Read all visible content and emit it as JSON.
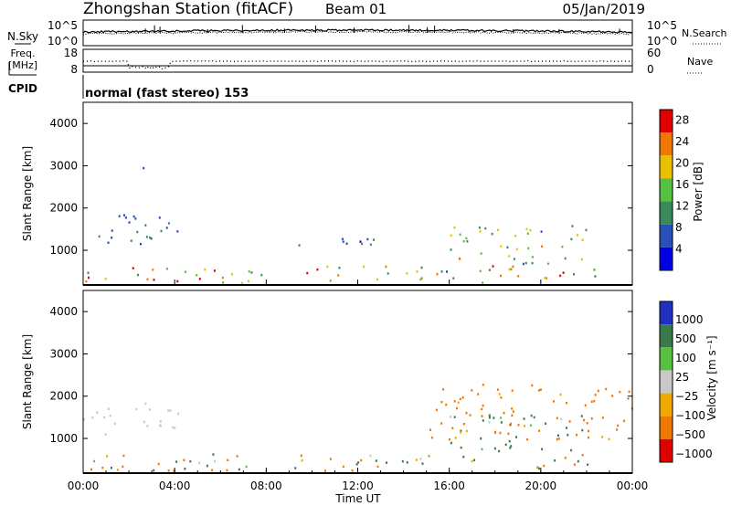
{
  "header": {
    "station": "Zhongshan Station (fitACF)",
    "beam": "Beam 01",
    "date": "05/Jan/2019"
  },
  "top_panels": {
    "noise": {
      "left_label": "N.Sky",
      "right_label": "N.Search",
      "ticks_left": [
        "10^5",
        "10^0"
      ],
      "ticks_right": [
        "10^5",
        "10^0"
      ]
    },
    "freq": {
      "left_label_1": "Freq.",
      "left_label_2": "[MHz]",
      "right_label": "Nave",
      "ticks_left": [
        "18",
        "8"
      ],
      "ticks_right": [
        "60",
        "0"
      ]
    },
    "cpid": {
      "label": "CPID",
      "text": "normal (fast stereo) 153"
    }
  },
  "chart_data": [
    {
      "type": "heatmap",
      "quantity": "Power",
      "ylabel": "Slant Range [km]",
      "xlabel": "",
      "x_range": [
        "00:00",
        "00:00 (+24h)"
      ],
      "ylim": [
        180,
        4500
      ],
      "y_ticks": [
        1000,
        2000,
        3000,
        4000
      ],
      "colorbar": {
        "label": "Power [dB]",
        "ticks": [
          "4",
          "8",
          "12",
          "16",
          "20",
          "24",
          "28"
        ],
        "range": [
          0,
          30
        ]
      },
      "colors": [
        "#0000e0",
        "#2850b8",
        "#3a8a5a",
        "#58c040",
        "#e8c000",
        "#f07800",
        "#e00000"
      ],
      "features": [
        {
          "range_km": [
            1100,
            1900
          ],
          "hours": [
            0,
            4.2
          ],
          "power_db": [
            6,
            12
          ]
        },
        {
          "range_km": [
            250,
            650
          ],
          "hours": [
            0,
            22.5
          ],
          "power_db": [
            8,
            30
          ]
        },
        {
          "range_km": [
            1100,
            1300
          ],
          "hours": [
            9,
            15.5
          ],
          "power_db": [
            4,
            10
          ]
        },
        {
          "range_km": [
            700,
            1600
          ],
          "hours": [
            16,
            22
          ],
          "power_db": [
            8,
            22
          ]
        },
        {
          "range_km": [
            2900,
            3100
          ],
          "hours": [
            2.5,
            3
          ],
          "power_db": [
            4,
            8
          ]
        }
      ]
    },
    {
      "type": "heatmap",
      "quantity": "Velocity",
      "ylabel": "Slant Range [km]",
      "xlabel": "Time UT",
      "x_ticks": [
        "00:00",
        "04:00",
        "08:00",
        "12:00",
        "16:00",
        "20:00",
        "00:00"
      ],
      "ylim": [
        180,
        4500
      ],
      "y_ticks": [
        1000,
        2000,
        3000,
        4000
      ],
      "colorbar": {
        "label": "Velocity [m s⁻¹]",
        "ticks": [
          "1000",
          "500",
          "100",
          "25",
          "−25",
          "−100",
          "−500",
          "−1000"
        ]
      },
      "colors": [
        "#2030c0",
        "#3a7a4a",
        "#58c040",
        "#c8c8c8",
        "#f0a800",
        "#f07800",
        "#e00000"
      ],
      "features": [
        {
          "range_km": [
            1100,
            1900
          ],
          "hours": [
            0,
            4.2
          ],
          "velocity_ms": [
            -25,
            25
          ]
        },
        {
          "range_km": [
            250,
            650
          ],
          "hours": [
            0,
            22.5
          ],
          "velocity_ms": [
            -500,
            500
          ]
        },
        {
          "range_km": [
            700,
            1600
          ],
          "hours": [
            16,
            22
          ],
          "velocity_ms": [
            -25,
            500
          ]
        },
        {
          "range_km": [
            1000,
            2300
          ],
          "hours": [
            15,
            24
          ],
          "velocity_ms": [
            -500,
            -25
          ]
        }
      ]
    }
  ]
}
